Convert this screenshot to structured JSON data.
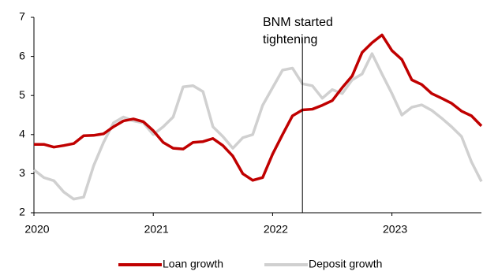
{
  "chart_data": {
    "type": "line",
    "x": [
      2020,
      2020.0833,
      2020.1667,
      2020.25,
      2020.3333,
      2020.4167,
      2020.5,
      2020.5833,
      2020.6667,
      2020.75,
      2020.8333,
      2020.9167,
      2021,
      2021.0833,
      2021.1667,
      2021.25,
      2021.3333,
      2021.4167,
      2021.5,
      2021.5833,
      2021.6667,
      2021.75,
      2021.8333,
      2021.9167,
      2022,
      2022.0833,
      2022.1667,
      2022.25,
      2022.3333,
      2022.4167,
      2022.5,
      2022.5833,
      2022.6667,
      2022.75,
      2022.8333,
      2022.9167,
      2023,
      2023.0833,
      2023.1667,
      2023.25,
      2023.3333,
      2023.4167,
      2023.5,
      2023.5833,
      2023.6667,
      2023.75
    ],
    "series": [
      {
        "name": "Loan growth",
        "color": "#c00000",
        "values": [
          3.75,
          3.75,
          3.68,
          3.72,
          3.77,
          3.97,
          3.98,
          4.02,
          4.2,
          4.35,
          4.4,
          4.33,
          4.1,
          3.8,
          3.65,
          3.63,
          3.8,
          3.82,
          3.9,
          3.72,
          3.45,
          3.0,
          2.83,
          2.9,
          3.5,
          4.0,
          4.48,
          4.63,
          4.65,
          4.75,
          4.87,
          5.2,
          5.5,
          6.1,
          6.35,
          6.55,
          6.15,
          5.92,
          5.4,
          5.28,
          5.05,
          4.93,
          4.8,
          4.6,
          4.48,
          4.22
        ]
      },
      {
        "name": "Deposit growth",
        "color": "#d0d0d0",
        "values": [
          3.1,
          2.9,
          2.82,
          2.53,
          2.35,
          2.4,
          3.2,
          3.8,
          4.3,
          4.45,
          4.35,
          4.3,
          4.0,
          4.2,
          4.45,
          5.22,
          5.25,
          5.1,
          4.2,
          3.95,
          3.65,
          3.92,
          4.0,
          4.75,
          5.2,
          5.65,
          5.7,
          5.3,
          5.25,
          4.93,
          5.15,
          5.05,
          5.4,
          5.55,
          6.07,
          5.55,
          5.05,
          4.5,
          4.7,
          4.76,
          4.62,
          4.42,
          4.2,
          3.95,
          3.3,
          2.8
        ]
      }
    ],
    "xlim": [
      2020,
      2023.75
    ],
    "xticks": [
      2020,
      2021,
      2022,
      2023
    ],
    "ylim": [
      2,
      7
    ],
    "yticks": [
      2,
      3,
      4,
      5,
      6,
      7
    ],
    "annotation": {
      "lines": [
        "BNM started",
        "tightening"
      ],
      "x": 2022.25
    },
    "legend": "bottom"
  }
}
